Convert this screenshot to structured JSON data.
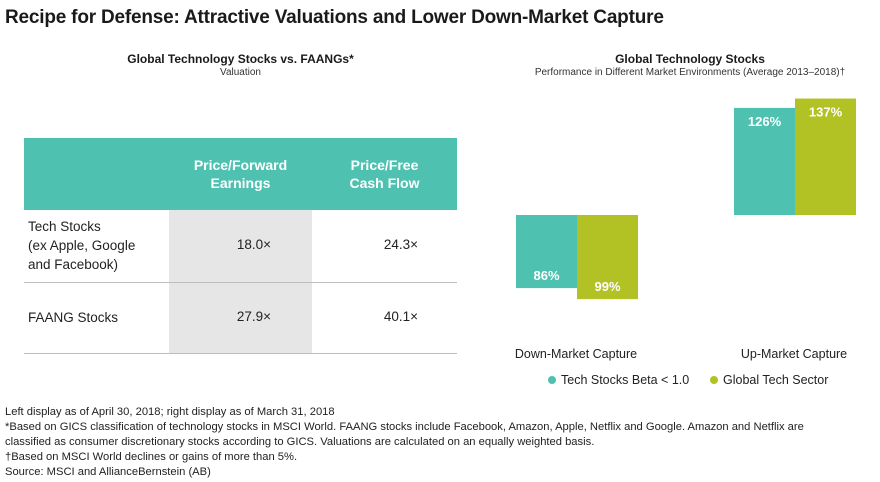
{
  "main_title": "Recipe for Defense: Attractive Valuations and Lower Down-Market Capture",
  "left_panel": {
    "title": "Global Technology Stocks vs. FAANGs*",
    "subtitle": "Valuation",
    "table": {
      "headers": [
        "Price/Forward\nEarnings",
        "Price/Free\nCash Flow"
      ],
      "rows": [
        {
          "label": "Tech Stocks\n(ex Apple, Google\nand Facebook)",
          "values": [
            "18.0×",
            "24.3×"
          ]
        },
        {
          "label": "FAANG Stocks",
          "values": [
            "27.9×",
            "40.1×"
          ]
        }
      ]
    }
  },
  "right_panel": {
    "title": "Global Technology Stocks",
    "subtitle": "Performance in Different Market Environments (Average 2013–2018)†"
  },
  "chart_data": {
    "type": "bar",
    "categories": [
      "Down-Market Capture",
      "Up-Market Capture"
    ],
    "series": [
      {
        "name": "Tech Stocks Beta < 1.0",
        "values": [
          86,
          126
        ],
        "labels": [
          "86%",
          "126%"
        ],
        "color": "#4fc1b0"
      },
      {
        "name": "Global Tech Sector",
        "values": [
          99,
          137
        ],
        "labels": [
          "99%",
          "137%"
        ],
        "color": "#b2c224"
      }
    ],
    "unit": "%",
    "down_market_direction": "below",
    "legend_position": "bottom",
    "grid": false
  },
  "colors": {
    "teal": "#4fc1b0",
    "lime": "#b2c224",
    "shade": "#e6e6e6"
  },
  "footnotes": [
    "Left display as of April 30, 2018; right display as of March 31, 2018",
    "*Based on GICS classification of technology stocks in MSCI World. FAANG stocks include Facebook, Amazon, Apple, Netflix and Google. Amazon and Netflix are",
    "classified as consumer discretionary stocks according to GICS. Valuations are calculated on an equally weighted basis.",
    "†Based on MSCI World declines or gains of more than 5%.",
    "Source: MSCI and AllianceBernstein (AB)"
  ]
}
